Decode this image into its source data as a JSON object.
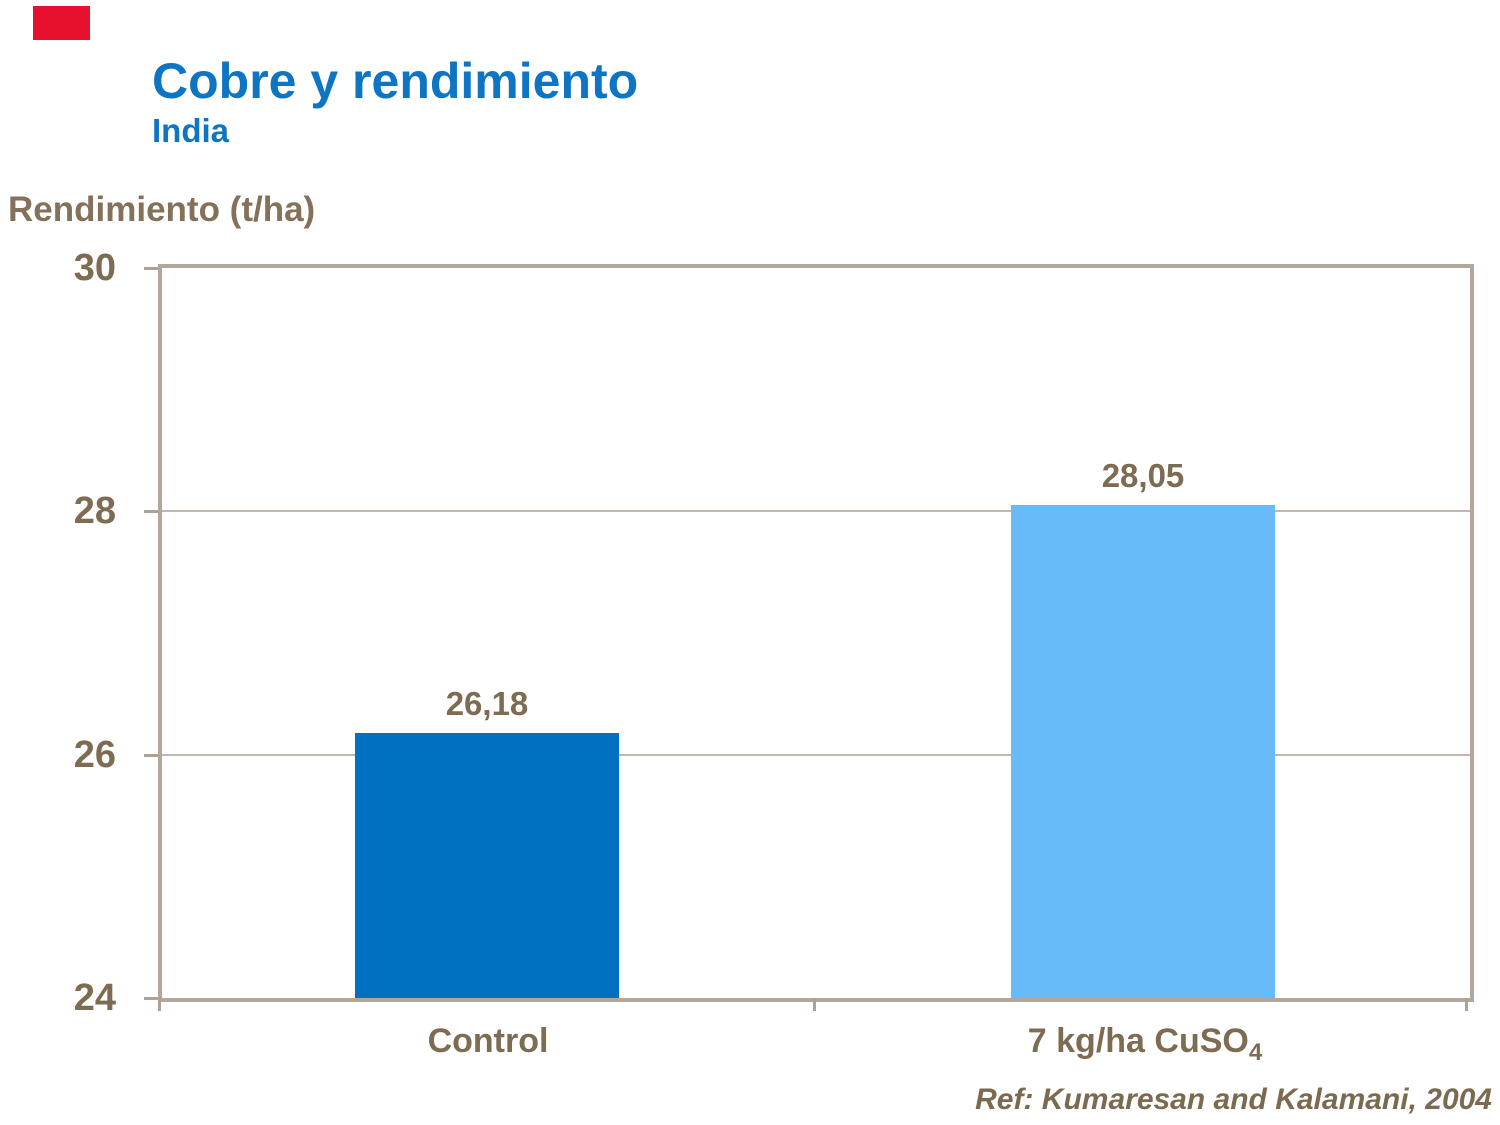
{
  "marker": {
    "color": "#E8112D"
  },
  "chart_data": {
    "type": "bar",
    "title": "Cobre y rendimiento",
    "subtitle": "India",
    "ylabel": "Rendimiento (t/ha)",
    "categories": [
      "Control",
      "7 kg/ha CuSO4"
    ],
    "categories_display": [
      {
        "main": "Control",
        "sub": ""
      },
      {
        "main": "7 kg/ha CuSO",
        "sub": "4"
      }
    ],
    "values": [
      26.18,
      28.05
    ],
    "value_labels": [
      "26,18",
      "28,05"
    ],
    "bar_colors": [
      "#0070C0",
      "#66BBF8"
    ],
    "yticks": [
      30,
      28,
      26,
      24
    ],
    "ytick_labels": [
      "30",
      "28",
      "26",
      "24"
    ],
    "gridline_values": [
      28,
      26
    ],
    "ylim": [
      24,
      30
    ],
    "grid": "horizontal",
    "legend": "none",
    "reference": "Ref: Kumaresan and Kalamani, 2004"
  }
}
